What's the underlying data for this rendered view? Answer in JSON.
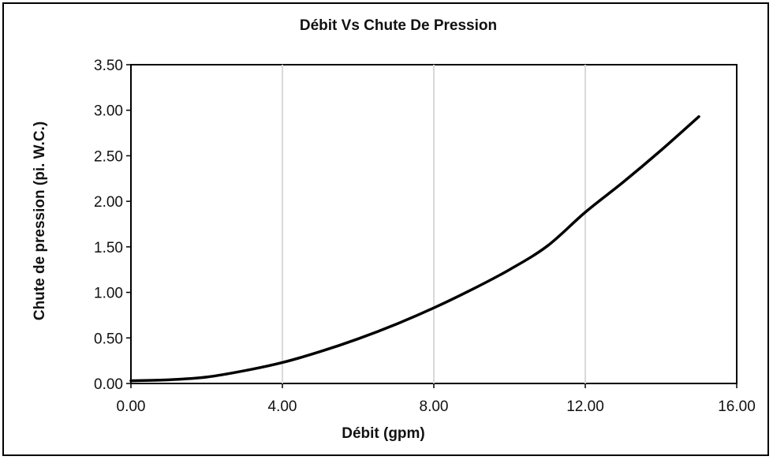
{
  "chart_data": {
    "type": "line",
    "title": "Débit Vs Chute De Pression",
    "xlabel": "Débit (gpm)",
    "ylabel": "Chute de pression (pi. W.C.)",
    "xlim": [
      0,
      16
    ],
    "ylim": [
      0,
      3.5
    ],
    "xticks": [
      "0.00",
      "4.00",
      "8.00",
      "12.00",
      "16.00"
    ],
    "yticks": [
      "0.00",
      "0.50",
      "1.00",
      "1.50",
      "2.00",
      "2.50",
      "3.00",
      "3.50"
    ],
    "grid": "vertical",
    "series": [
      {
        "color": "#000000",
        "x": [
          0,
          1,
          2,
          3,
          4,
          5,
          6,
          7,
          8,
          9,
          10,
          11,
          12,
          13,
          14,
          15
        ],
        "y": [
          0.03,
          0.04,
          0.07,
          0.14,
          0.23,
          0.35,
          0.49,
          0.65,
          0.83,
          1.03,
          1.25,
          1.51,
          1.88,
          2.21,
          2.56,
          2.93
        ]
      }
    ]
  }
}
